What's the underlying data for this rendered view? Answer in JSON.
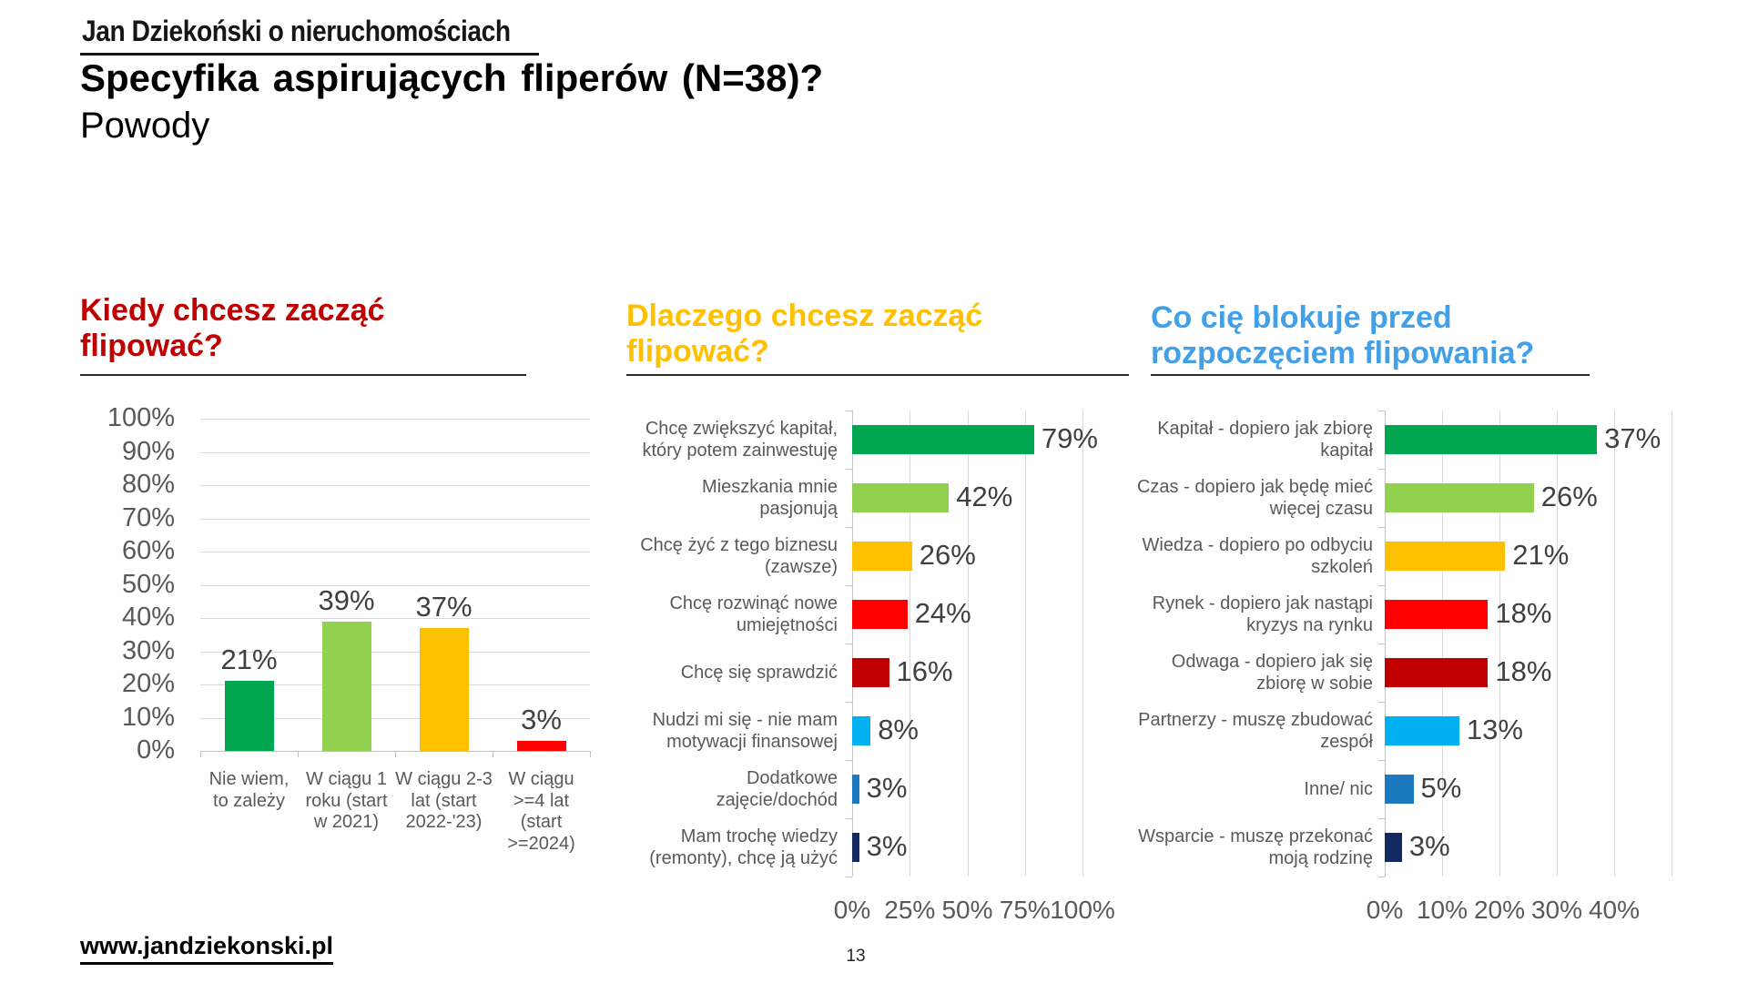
{
  "header": {
    "logo": "Jan Dziekoński o nieruchomościach",
    "title": "Specyfika aspirujących fliperów (N=38)?",
    "subtitle": "Powody"
  },
  "footer": {
    "website": "www.jandziekonski.pl",
    "page_number": "13"
  },
  "chart_data": [
    {
      "type": "bar",
      "orientation": "vertical",
      "title": "Kiedy chcesz zacząć flipować?",
      "title_color": "#C00000",
      "categories": [
        "Nie wiem, to zależy",
        "W ciągu 1 roku (start w 2021)",
        "W ciągu 2-3 lat (start 2022-'23)",
        "W ciągu >=4 lat (start >=2024)"
      ],
      "values": [
        21,
        39,
        37,
        3
      ],
      "value_labels": [
        "21%",
        "39%",
        "37%",
        "3%"
      ],
      "bar_colors": [
        "#00A550",
        "#92D050",
        "#FFC000",
        "#FE0000"
      ],
      "y_tick_labels": [
        "100%",
        "90%",
        "80%",
        "70%",
        "60%",
        "50%",
        "40%",
        "30%",
        "20%",
        "10%",
        "0%"
      ],
      "ylim": [
        0,
        100
      ],
      "grid": true,
      "legend": "none"
    },
    {
      "type": "bar",
      "orientation": "horizontal",
      "title": "Dlaczego chcesz zacząć flipować?",
      "title_color": "#FFC000",
      "categories": [
        "Chcę zwiększyć kapitał, który potem zainwestuję",
        "Mieszkania mnie pasjonują",
        "Chcę żyć z tego biznesu (zawsze)",
        "Chcę rozwinąć nowe umiejętności",
        "Chcę się sprawdzić",
        "Nudzi mi się - nie mam motywacji finansowej",
        "Dodatkowe zajęcie/dochód",
        "Mam trochę wiedzy (remonty), chcę ją użyć"
      ],
      "values": [
        79,
        42,
        26,
        24,
        16,
        8,
        3,
        3
      ],
      "value_labels": [
        "79%",
        "42%",
        "26%",
        "24%",
        "16%",
        "8%",
        "3%",
        "3%"
      ],
      "bar_colors": [
        "#00A550",
        "#92D050",
        "#FFC000",
        "#FE0000",
        "#C00000",
        "#00B0F0",
        "#1B79C0",
        "#132A60"
      ],
      "x_tick_labels": [
        "0%",
        "25%",
        "50%",
        "75%",
        "100%"
      ],
      "xlim": [
        0,
        100
      ],
      "grid": true,
      "legend": "none"
    },
    {
      "type": "bar",
      "orientation": "horizontal",
      "title": "Co cię blokuje przed rozpoczęciem flipowania?",
      "title_color": "#42A0E8",
      "categories": [
        "Kapitał - dopiero jak zbiorę kapitał",
        "Czas - dopiero jak będę mieć więcej czasu",
        "Wiedza - dopiero po odbyciu szkoleń",
        "Rynek - dopiero jak nastąpi kryzys na rynku",
        "Odwaga - dopiero jak się zbiorę w sobie",
        "Partnerzy - muszę zbudować zespół",
        "Inne/ nic",
        "Wsparcie - muszę przekonać moją rodzinę"
      ],
      "values": [
        37,
        26,
        21,
        18,
        18,
        13,
        5,
        3
      ],
      "value_labels": [
        "37%",
        "26%",
        "21%",
        "18%",
        "18%",
        "13%",
        "5%",
        "3%"
      ],
      "bar_colors": [
        "#00A550",
        "#92D050",
        "#FFC000",
        "#FE0000",
        "#C00000",
        "#00B0F0",
        "#1B79C0",
        "#132A60"
      ],
      "x_tick_labels": [
        "0%",
        "10%",
        "20%",
        "30%",
        "40%"
      ],
      "xlim": [
        0,
        40
      ],
      "grid": true,
      "legend": "none"
    }
  ]
}
